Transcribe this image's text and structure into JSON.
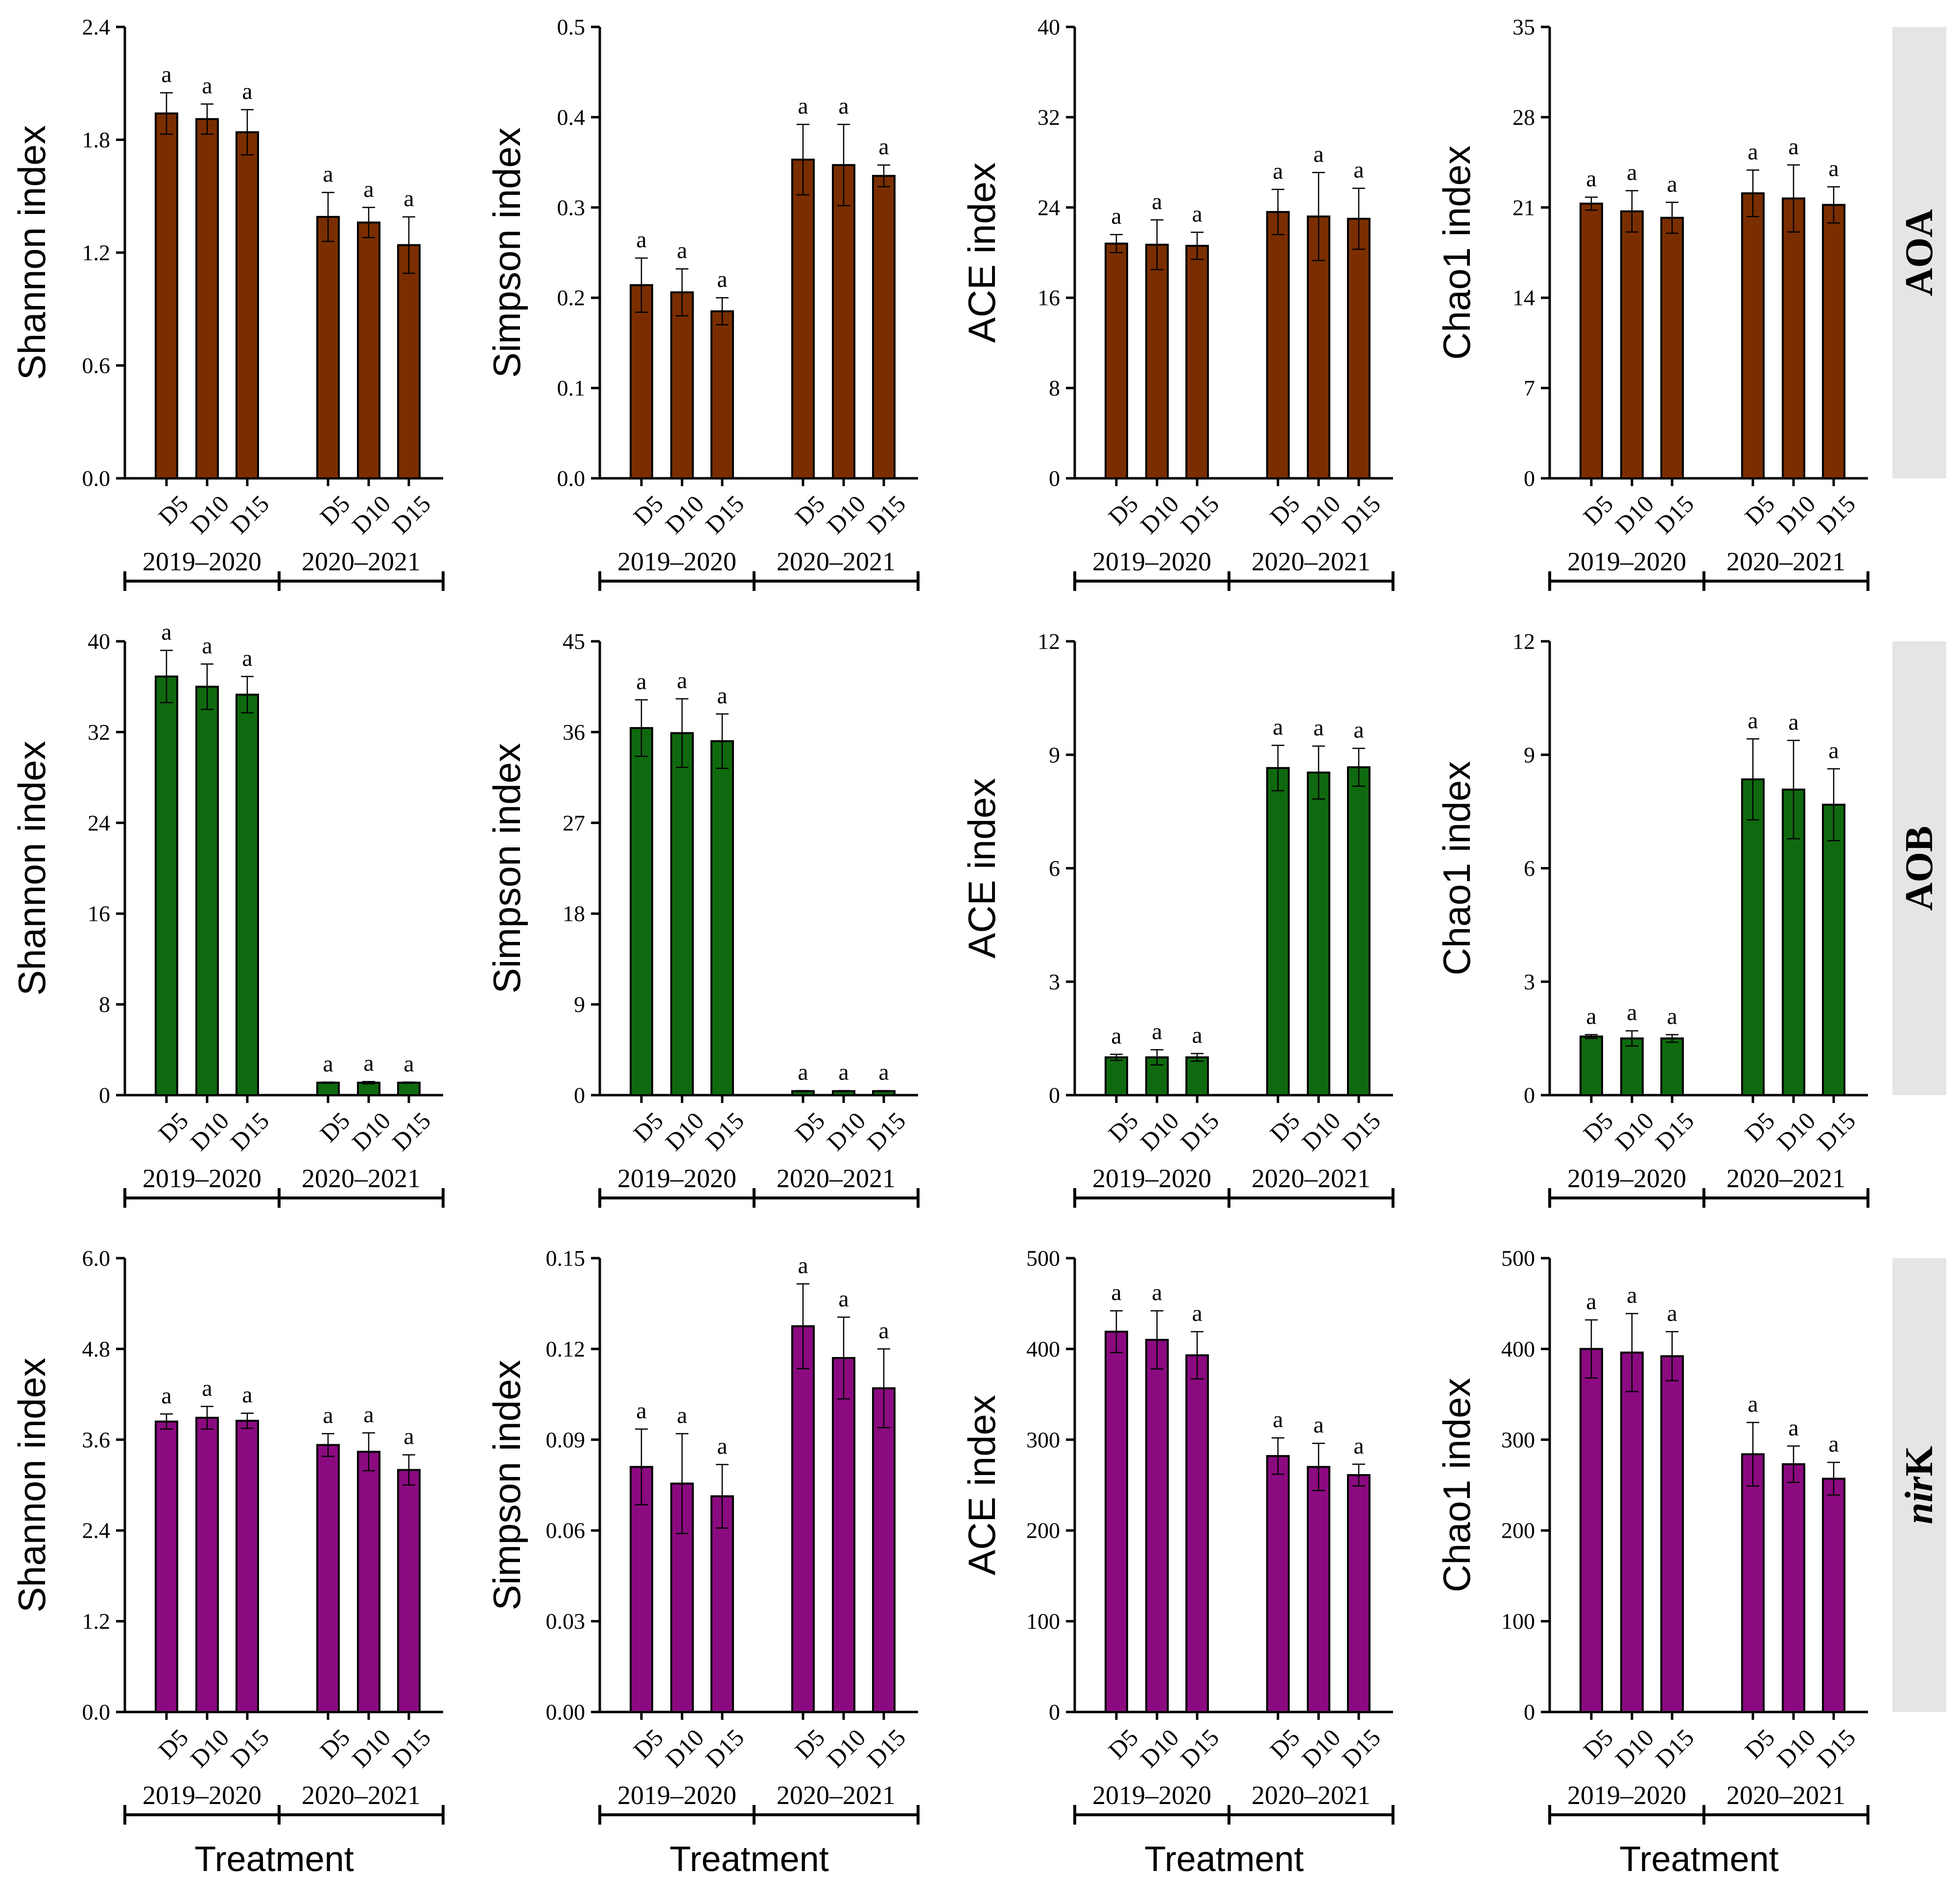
{
  "figure": {
    "x_title": "Treatment",
    "treatments": [
      "D5",
      "D10",
      "D15"
    ],
    "groups": [
      "2019–2020",
      "2020–2021"
    ]
  },
  "rows": [
    {
      "label": "AOA",
      "italic_prefix": "",
      "color": "#7A2E00"
    },
    {
      "label": "AOB",
      "italic_prefix": "",
      "color": "#0F6A0F"
    },
    {
      "label": "K",
      "italic_prefix": "nir",
      "color": "#8B0A80"
    }
  ],
  "chart_data": [
    {
      "type": "bar",
      "row": 0,
      "col": 0,
      "ylabel": "Shannon index",
      "ylim": [
        0,
        2.4
      ],
      "yticks": [
        "0.0",
        "0.6",
        "1.2",
        "1.8",
        "2.4"
      ],
      "values": [
        1.94,
        1.91,
        1.84,
        1.39,
        1.36,
        1.24
      ],
      "errors": [
        0.11,
        0.08,
        0.12,
        0.13,
        0.08,
        0.15
      ],
      "sig": [
        "a",
        "a",
        "a",
        "a",
        "a",
        "a"
      ]
    },
    {
      "type": "bar",
      "row": 0,
      "col": 1,
      "ylabel": "Simpson index",
      "ylim": [
        0,
        0.5
      ],
      "yticks": [
        "0.0",
        "0.1",
        "0.2",
        "0.3",
        "0.4",
        "0.5"
      ],
      "values": [
        0.214,
        0.206,
        0.185,
        0.353,
        0.347,
        0.335
      ],
      "errors": [
        0.03,
        0.026,
        0.015,
        0.039,
        0.045,
        0.012
      ],
      "sig": [
        "a",
        "a",
        "a",
        "a",
        "a",
        "a"
      ]
    },
    {
      "type": "bar",
      "row": 0,
      "col": 2,
      "ylabel": "ACE index",
      "ylim": [
        0,
        40
      ],
      "yticks": [
        "0",
        "8",
        "16",
        "24",
        "32",
        "40"
      ],
      "values": [
        20.8,
        20.7,
        20.6,
        23.6,
        23.2,
        23.0
      ],
      "errors": [
        0.8,
        2.2,
        1.2,
        2.0,
        3.9,
        2.7
      ],
      "sig": [
        "a",
        "a",
        "a",
        "a",
        "a",
        "a"
      ]
    },
    {
      "type": "bar",
      "row": 0,
      "col": 3,
      "ylabel": "Chao1 index",
      "ylim": [
        0,
        35
      ],
      "yticks": [
        "0",
        "7",
        "14",
        "21",
        "28",
        "35"
      ],
      "values": [
        21.3,
        20.7,
        20.2,
        22.1,
        21.7,
        21.2
      ],
      "errors": [
        0.5,
        1.6,
        1.2,
        1.8,
        2.6,
        1.4
      ],
      "sig": [
        "a",
        "a",
        "a",
        "a",
        "a",
        "a"
      ]
    },
    {
      "type": "bar",
      "row": 1,
      "col": 0,
      "ylabel": "Shannon index",
      "ylim": [
        0,
        40
      ],
      "yticks": [
        "0",
        "8",
        "16",
        "24",
        "32",
        "40"
      ],
      "values": [
        36.9,
        36.0,
        35.3,
        1.1,
        1.1,
        1.1
      ],
      "errors": [
        2.3,
        2.0,
        1.6,
        0.05,
        0.1,
        0.05
      ],
      "sig": [
        "a",
        "a",
        "a",
        "a",
        "a",
        "a"
      ]
    },
    {
      "type": "bar",
      "row": 1,
      "col": 1,
      "ylabel": "Simpson index",
      "ylim": [
        0,
        45
      ],
      "yticks": [
        "0",
        "9",
        "18",
        "27",
        "36",
        "45"
      ],
      "values": [
        36.4,
        35.9,
        35.1,
        0.4,
        0.4,
        0.4
      ],
      "errors": [
        2.8,
        3.4,
        2.7,
        0.05,
        0.05,
        0.05
      ],
      "sig": [
        "a",
        "a",
        "a",
        "a",
        "a",
        "a"
      ]
    },
    {
      "type": "bar",
      "row": 1,
      "col": 2,
      "ylabel": "ACE index",
      "ylim": [
        0,
        12
      ],
      "yticks": [
        "0",
        "3",
        "6",
        "9",
        "12"
      ],
      "values": [
        1.0,
        1.0,
        1.0,
        8.65,
        8.53,
        8.67
      ],
      "errors": [
        0.08,
        0.2,
        0.1,
        0.6,
        0.7,
        0.5
      ],
      "sig": [
        "a",
        "a",
        "a",
        "a",
        "a",
        "a"
      ]
    },
    {
      "type": "bar",
      "row": 1,
      "col": 3,
      "ylabel": "Chao1 index",
      "ylim": [
        0,
        12
      ],
      "yticks": [
        "0",
        "3",
        "6",
        "9",
        "12"
      ],
      "values": [
        1.55,
        1.5,
        1.5,
        8.35,
        8.08,
        7.68
      ],
      "errors": [
        0.05,
        0.2,
        0.1,
        1.07,
        1.3,
        0.95
      ],
      "sig": [
        "a",
        "a",
        "a",
        "a",
        "a",
        "a"
      ]
    },
    {
      "type": "bar",
      "row": 2,
      "col": 0,
      "ylabel": "Shannon index",
      "ylim": [
        0,
        6.0
      ],
      "yticks": [
        "0.0",
        "1.2",
        "2.4",
        "3.6",
        "4.8",
        "6.0"
      ],
      "values": [
        3.84,
        3.89,
        3.85,
        3.53,
        3.44,
        3.2
      ],
      "errors": [
        0.1,
        0.15,
        0.1,
        0.15,
        0.25,
        0.2
      ],
      "sig": [
        "a",
        "a",
        "a",
        "a",
        "a",
        "a"
      ]
    },
    {
      "type": "bar",
      "row": 2,
      "col": 1,
      "ylabel": "Simpson index",
      "ylim": [
        0,
        0.15
      ],
      "yticks": [
        "0.00",
        "0.03",
        "0.06",
        "0.09",
        "0.12",
        "0.15"
      ],
      "values": [
        0.081,
        0.0755,
        0.0713,
        0.1275,
        0.117,
        0.107
      ],
      "errors": [
        0.0125,
        0.0165,
        0.0105,
        0.014,
        0.0135,
        0.013
      ],
      "sig": [
        "a",
        "a",
        "a",
        "a",
        "a",
        "a"
      ]
    },
    {
      "type": "bar",
      "row": 2,
      "col": 2,
      "ylabel": "ACE index",
      "ylim": [
        0,
        500
      ],
      "yticks": [
        "0",
        "100",
        "200",
        "300",
        "400",
        "500"
      ],
      "values": [
        419,
        410,
        393,
        282,
        270,
        261
      ],
      "errors": [
        23,
        32,
        26,
        20,
        26,
        12
      ],
      "sig": [
        "a",
        "a",
        "a",
        "a",
        "a",
        "a"
      ]
    },
    {
      "type": "bar",
      "row": 2,
      "col": 3,
      "ylabel": "Chao1 index",
      "ylim": [
        0,
        500
      ],
      "yticks": [
        "0",
        "100",
        "200",
        "300",
        "400",
        "500"
      ],
      "values": [
        400,
        396,
        392,
        284,
        273,
        257
      ],
      "errors": [
        32,
        43,
        27,
        35,
        20,
        18
      ],
      "sig": [
        "a",
        "a",
        "a",
        "a",
        "a",
        "a"
      ]
    }
  ]
}
